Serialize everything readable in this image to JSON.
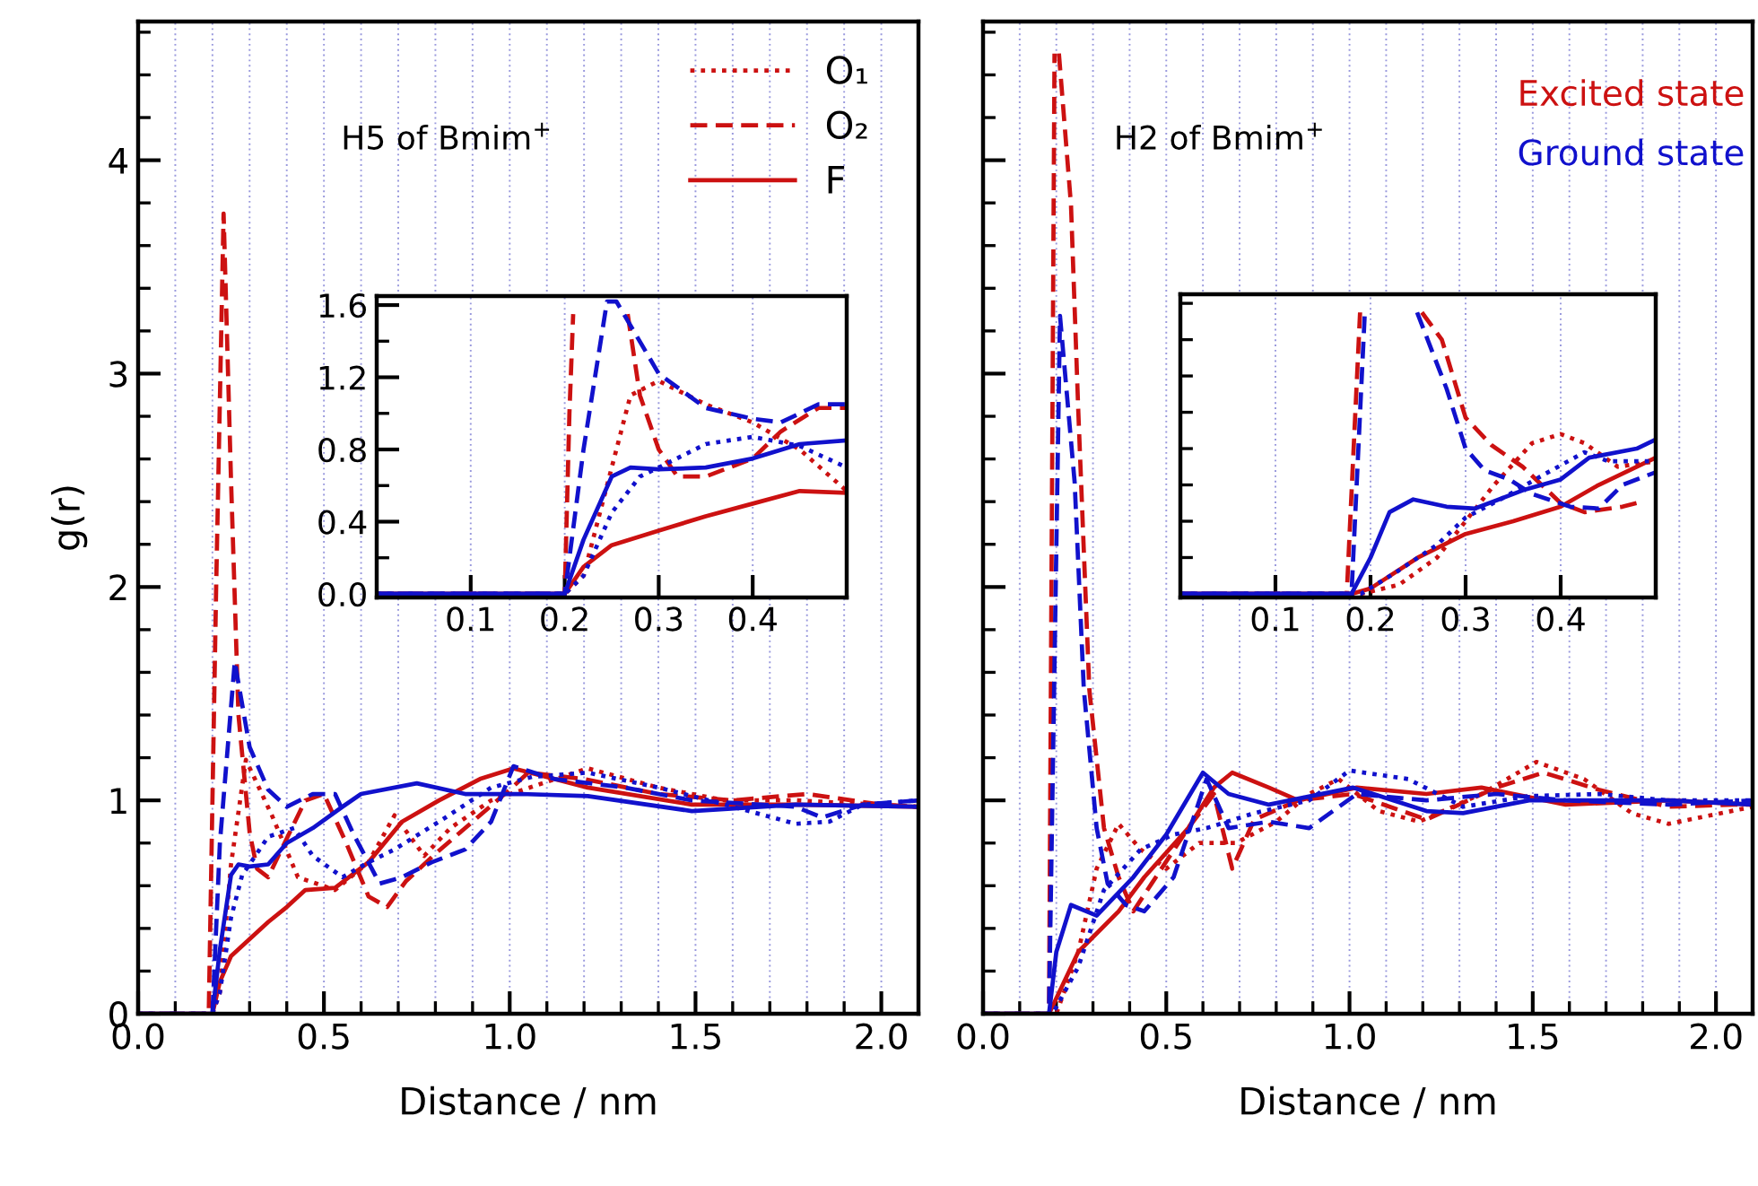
{
  "chart_data": [
    {
      "type": "line",
      "xlabel": "Distance / nm",
      "ylabel": "g(r)",
      "xlim": [
        0,
        2.1
      ],
      "ylim": [
        0,
        4.65
      ],
      "xticks": [
        {
          "value": 0,
          "label": "0.0"
        },
        {
          "value": 0.5,
          "label": "0.5"
        },
        {
          "value": 1.0,
          "label": "1.0"
        },
        {
          "value": 1.5,
          "label": "1.5"
        },
        {
          "value": 2.0,
          "label": "2.0"
        },
        {
          "value": 0.1,
          "label": null
        },
        {
          "value": 0.2,
          "label": null
        },
        {
          "value": 0.3,
          "label": null
        },
        {
          "value": 0.4,
          "label": null
        },
        {
          "value": 0.6,
          "label": null
        },
        {
          "value": 0.7,
          "label": null
        },
        {
          "value": 0.8,
          "label": null
        },
        {
          "value": 0.9,
          "label": null
        },
        {
          "value": 1.1,
          "label": null
        },
        {
          "value": 1.2,
          "label": null
        },
        {
          "value": 1.3,
          "label": null
        },
        {
          "value": 1.4,
          "label": null
        },
        {
          "value": 1.6,
          "label": null
        },
        {
          "value": 1.7,
          "label": null
        },
        {
          "value": 1.8,
          "label": null
        },
        {
          "value": 1.9,
          "label": null
        },
        {
          "value": 2.1,
          "label": null
        }
      ],
      "yticks": [
        0,
        1,
        2,
        3,
        4,
        {
          "value": 0.2,
          "label": null
        },
        {
          "value": 0.4,
          "label": null
        },
        {
          "value": 0.6,
          "label": null
        },
        {
          "value": 0.8,
          "label": null
        },
        {
          "value": 1.2,
          "label": null
        },
        {
          "value": 1.4,
          "label": null
        },
        {
          "value": 1.6,
          "label": null
        },
        {
          "value": 1.8,
          "label": null
        },
        {
          "value": 2.2,
          "label": null
        },
        {
          "value": 2.4,
          "label": null
        },
        {
          "value": 2.6,
          "label": null
        },
        {
          "value": 2.8,
          "label": null
        },
        {
          "value": 3.2,
          "label": null
        },
        {
          "value": 3.4,
          "label": null
        },
        {
          "value": 3.6,
          "label": null
        },
        {
          "value": 3.8,
          "label": null
        },
        {
          "value": 4.2,
          "label": null
        },
        {
          "value": 4.4,
          "label": null
        },
        {
          "value": 4.6,
          "label": null
        }
      ],
      "grid": "x",
      "legend": "top right",
      "annotations": [
        "H5 of Bmim$^{+}$"
      ],
      "series": [
        {
          "name": "O₁",
          "color": "#cc1111",
          "line_style": "dotted",
          "x": [
            0,
            0.2,
            0.22,
            0.25,
            0.29,
            0.36,
            0.43,
            0.53,
            0.62,
            0.69,
            0.77,
            0.84,
            0.95,
            1.21,
            1.4,
            1.58,
            1.77,
            2.1
          ],
          "values": [
            0,
            0,
            0.1,
            0.7,
            1.19,
            0.93,
            0.64,
            0.58,
            0.71,
            0.93,
            0.74,
            0.87,
            1.0,
            1.15,
            1.06,
            1.0,
            1.0,
            0.97
          ]
        },
        {
          "name": "O₂",
          "color": "#cc1111",
          "line_style": "dashed",
          "x": [
            0,
            0.19,
            0.21,
            0.23,
            0.25,
            0.27,
            0.3,
            0.32,
            0.35,
            0.38,
            0.45,
            0.5,
            0.56,
            0.62,
            0.67,
            0.72,
            0.8,
            0.9,
            1.0,
            1.05,
            1.2,
            1.4,
            1.6,
            1.8,
            2.0,
            2.1
          ],
          "values": [
            0,
            0,
            2.0,
            3.75,
            2.5,
            1.4,
            0.85,
            0.68,
            0.64,
            0.75,
            1.0,
            1.03,
            0.8,
            0.55,
            0.5,
            0.62,
            0.75,
            0.9,
            1.05,
            1.13,
            1.1,
            1.03,
            1.0,
            1.03,
            0.98,
            0.97
          ]
        },
        {
          "name": "F",
          "color": "#cc1111",
          "line_style": "solid",
          "x": [
            0,
            0.2,
            0.22,
            0.25,
            0.3,
            0.35,
            0.4,
            0.45,
            0.53,
            0.62,
            0.71,
            0.81,
            0.92,
            1.01,
            1.21,
            1.49,
            1.77,
            2.1
          ],
          "values": [
            0,
            0,
            0.15,
            0.27,
            0.35,
            0.43,
            0.5,
            0.58,
            0.59,
            0.71,
            0.9,
            1.0,
            1.1,
            1.15,
            1.06,
            0.98,
            0.98,
            0.97
          ]
        },
        {
          "color": "#1111cc",
          "line_style": "dotted",
          "x": [
            0,
            0.2,
            0.22,
            0.25,
            0.28,
            0.3,
            0.35,
            0.42,
            0.47,
            0.55,
            0.62,
            0.69,
            0.81,
            0.95,
            1.06,
            1.21,
            1.4,
            1.58,
            1.77,
            1.86,
            1.95,
            2.1
          ],
          "values": [
            0,
            0,
            0.1,
            0.45,
            0.65,
            0.7,
            0.83,
            0.87,
            0.74,
            0.64,
            0.71,
            0.77,
            0.9,
            1.06,
            1.11,
            1.13,
            1.06,
            0.98,
            0.89,
            0.9,
            0.98,
            1.0
          ]
        },
        {
          "color": "#1111cc",
          "line_style": "dashed",
          "x": [
            0,
            0.2,
            0.22,
            0.26,
            0.3,
            0.35,
            0.4,
            0.47,
            0.53,
            0.58,
            0.65,
            0.71,
            0.79,
            0.88,
            0.95,
            1.01,
            1.12,
            1.31,
            1.49,
            1.77,
            1.84,
            1.95,
            2.1
          ],
          "values": [
            0,
            0,
            0.8,
            1.65,
            1.25,
            1.05,
            0.97,
            1.03,
            1.03,
            0.84,
            0.61,
            0.64,
            0.71,
            0.77,
            0.9,
            1.16,
            1.1,
            1.06,
            1.0,
            0.97,
            0.92,
            0.98,
            1.0
          ]
        },
        {
          "color": "#1111cc",
          "line_style": "solid",
          "x": [
            0,
            0.2,
            0.22,
            0.25,
            0.27,
            0.3,
            0.35,
            0.4,
            0.47,
            0.55,
            0.6,
            0.75,
            0.88,
            1.03,
            1.21,
            1.49,
            1.77,
            2.1
          ],
          "values": [
            0,
            0,
            0.3,
            0.65,
            0.7,
            0.69,
            0.7,
            0.8,
            0.87,
            0.97,
            1.03,
            1.08,
            1.03,
            1.03,
            1.02,
            0.95,
            0.98,
            0.97
          ]
        }
      ]
    },
    {
      "type": "line",
      "xlim": [
        0,
        0.5
      ],
      "ylim": [
        -0.02,
        1.65
      ],
      "xticks": [
        0.1,
        0.2,
        0.3,
        0.4
      ],
      "yticks": [
        {
          "value": 0,
          "label": "0.0"
        },
        {
          "value": 0.4,
          "label": "0.4"
        },
        {
          "value": 0.8,
          "label": "0.8"
        },
        {
          "value": 1.2,
          "label": "1.2"
        },
        {
          "value": 1.6,
          "label": "1.6"
        },
        {
          "value": 0.2,
          "label": null
        },
        {
          "value": 0.6,
          "label": null
        },
        {
          "value": 1.0,
          "label": null
        },
        {
          "value": 1.4,
          "label": null
        }
      ],
      "grid": "x",
      "series": [
        {
          "color": "#cc1111",
          "line_style": "dotted",
          "x": [
            0,
            0.2,
            0.22,
            0.25,
            0.27,
            0.3,
            0.35,
            0.4,
            0.45,
            0.5
          ],
          "values": [
            0,
            0,
            0.1,
            0.7,
            1.1,
            1.18,
            1.05,
            0.95,
            0.8,
            0.57
          ]
        },
        {
          "color": "#cc1111",
          "line_style": "dashed",
          "x": [
            0,
            0.2,
            0.205,
            0.209,
            0.24,
            0.267,
            0.28,
            0.3,
            0.32,
            0.35,
            0.4,
            0.43,
            0.47,
            0.5
          ],
          "values": [
            0,
            0,
            1.0,
            1.55,
            null,
            1.55,
            1.1,
            0.8,
            0.65,
            0.65,
            0.75,
            0.9,
            1.03,
            1.03
          ]
        },
        {
          "color": "#cc1111",
          "line_style": "solid",
          "x": [
            0,
            0.2,
            0.22,
            0.25,
            0.3,
            0.35,
            0.4,
            0.45,
            0.5
          ],
          "values": [
            0,
            0,
            0.15,
            0.27,
            0.35,
            0.43,
            0.5,
            0.57,
            0.56
          ]
        },
        {
          "color": "#1111cc",
          "line_style": "dotted",
          "x": [
            0,
            0.2,
            0.22,
            0.25,
            0.28,
            0.3,
            0.35,
            0.4,
            0.45,
            0.5
          ],
          "values": [
            0,
            0,
            0.1,
            0.45,
            0.65,
            0.7,
            0.83,
            0.87,
            0.82,
            0.7
          ]
        },
        {
          "color": "#1111cc",
          "line_style": "dashed",
          "x": [
            0,
            0.2,
            0.22,
            0.245,
            0.255,
            0.3,
            0.35,
            0.4,
            0.43,
            0.47,
            0.5
          ],
          "values": [
            0,
            0,
            0.8,
            1.62,
            1.62,
            1.22,
            1.03,
            0.97,
            0.95,
            1.05,
            1.05
          ]
        },
        {
          "color": "#1111cc",
          "line_style": "solid",
          "x": [
            0,
            0.2,
            0.22,
            0.25,
            0.27,
            0.3,
            0.35,
            0.4,
            0.45,
            0.5
          ],
          "values": [
            0,
            0,
            0.3,
            0.65,
            0.7,
            0.69,
            0.7,
            0.75,
            0.83,
            0.85
          ]
        }
      ]
    },
    {
      "type": "line",
      "xlabel": "Distance / nm",
      "tick_labels": "x",
      "xlim": [
        0,
        2.1
      ],
      "ylim": [
        0,
        4.65
      ],
      "xticks": [
        {
          "value": 0,
          "label": "0.0"
        },
        {
          "value": 0.5,
          "label": "0.5"
        },
        {
          "value": 1.0,
          "label": "1.0"
        },
        {
          "value": 1.5,
          "label": "1.5"
        },
        {
          "value": 2.0,
          "label": "2.0"
        },
        {
          "value": 0.1,
          "label": null
        },
        {
          "value": 0.2,
          "label": null
        },
        {
          "value": 0.3,
          "label": null
        },
        {
          "value": 0.4,
          "label": null
        },
        {
          "value": 0.6,
          "label": null
        },
        {
          "value": 0.7,
          "label": null
        },
        {
          "value": 0.8,
          "label": null
        },
        {
          "value": 0.9,
          "label": null
        },
        {
          "value": 1.1,
          "label": null
        },
        {
          "value": 1.2,
          "label": null
        },
        {
          "value": 1.3,
          "label": null
        },
        {
          "value": 1.4,
          "label": null
        },
        {
          "value": 1.6,
          "label": null
        },
        {
          "value": 1.7,
          "label": null
        },
        {
          "value": 1.8,
          "label": null
        },
        {
          "value": 1.9,
          "label": null
        },
        {
          "value": 2.1,
          "label": null
        }
      ],
      "yticks": [
        0,
        1,
        2,
        3,
        4,
        {
          "value": 0.2,
          "label": null
        },
        {
          "value": 0.4,
          "label": null
        },
        {
          "value": 0.6,
          "label": null
        },
        {
          "value": 0.8,
          "label": null
        },
        {
          "value": 1.2,
          "label": null
        },
        {
          "value": 1.4,
          "label": null
        },
        {
          "value": 1.6,
          "label": null
        },
        {
          "value": 1.8,
          "label": null
        },
        {
          "value": 2.2,
          "label": null
        },
        {
          "value": 2.4,
          "label": null
        },
        {
          "value": 2.6,
          "label": null
        },
        {
          "value": 2.8,
          "label": null
        },
        {
          "value": 3.2,
          "label": null
        },
        {
          "value": 3.4,
          "label": null
        },
        {
          "value": 3.6,
          "label": null
        },
        {
          "value": 3.8,
          "label": null
        },
        {
          "value": 4.2,
          "label": null
        },
        {
          "value": 4.4,
          "label": null
        },
        {
          "value": 4.6,
          "label": null
        }
      ],
      "grid": "x",
      "annotations": [
        "H2 of Bmim$^{+}$",
        "Excited state",
        "Ground state"
      ],
      "series": [
        {
          "color": "#cc1111",
          "line_style": "dotted",
          "x": [
            0,
            0.2,
            0.26,
            0.31,
            0.37,
            0.43,
            0.5,
            0.59,
            0.69,
            0.8,
            0.89,
            0.97,
            1.08,
            1.19,
            1.36,
            1.51,
            1.64,
            1.77,
            1.87,
            2.1
          ],
          "values": [
            0,
            0,
            0.29,
            0.68,
            0.89,
            0.77,
            0.68,
            0.8,
            0.8,
            0.9,
            1.03,
            1.1,
            0.95,
            0.9,
            1.03,
            1.18,
            1.1,
            0.94,
            0.89,
            0.97
          ]
        },
        {
          "color": "#cc1111",
          "line_style": "dashed",
          "x": [
            0,
            0.18,
            0.195,
            0.2,
            0.207,
            0.24,
            0.26,
            0.29,
            0.33,
            0.37,
            0.41,
            0.46,
            0.56,
            0.63,
            0.68,
            0.74,
            0.86,
            1.01,
            1.21,
            1.4,
            1.53,
            1.68,
            1.87,
            2.05,
            2.1
          ],
          "values": [
            0,
            0,
            4.5,
            null,
            4.5,
            3.79,
            2.82,
            1.52,
            0.87,
            0.64,
            0.48,
            0.61,
            0.87,
            1.03,
            0.68,
            0.91,
            1.0,
            1.03,
            0.91,
            1.06,
            1.13,
            1.05,
            0.97,
            0.98,
            0.98
          ]
        },
        {
          "color": "#cc1111",
          "line_style": "solid",
          "x": [
            0,
            0.18,
            0.26,
            0.37,
            0.44,
            0.56,
            0.63,
            0.68,
            0.78,
            0.86,
            1.02,
            1.21,
            1.36,
            1.59,
            1.87,
            2.1
          ],
          "values": [
            0,
            0,
            0.29,
            0.48,
            0.64,
            0.87,
            1.06,
            1.13,
            1.06,
            1.0,
            1.06,
            1.03,
            1.06,
            0.98,
            1.0,
            0.98
          ]
        },
        {
          "color": "#1111cc",
          "line_style": "dotted",
          "x": [
            0,
            0.19,
            0.26,
            0.33,
            0.43,
            0.52,
            0.61,
            0.74,
            0.89,
            1.0,
            1.16,
            1.31,
            1.49,
            1.68,
            1.87,
            2.1
          ],
          "values": [
            0,
            0,
            0.22,
            0.58,
            0.77,
            0.84,
            0.87,
            0.94,
            1.0,
            1.14,
            1.1,
            0.97,
            1.02,
            1.03,
            1.0,
            1.0
          ]
        },
        {
          "color": "#1111cc",
          "line_style": "dashed",
          "x": [
            0,
            0.18,
            0.21,
            0.25,
            0.275,
            0.31,
            0.34,
            0.39,
            0.44,
            0.52,
            0.61,
            0.67,
            0.78,
            0.89,
            1.02,
            1.21,
            1.4,
            1.59,
            1.87,
            2.1
          ],
          "values": [
            0,
            0,
            3.27,
            2.49,
            1.52,
            0.87,
            0.61,
            0.51,
            0.48,
            0.64,
            1.1,
            0.87,
            0.9,
            0.87,
            1.03,
            1.0,
            1.03,
            1.0,
            0.98,
            1.0
          ]
        },
        {
          "color": "#1111cc",
          "line_style": "solid",
          "x": [
            0,
            0.18,
            0.2,
            0.24,
            0.31,
            0.41,
            0.5,
            0.6,
            0.67,
            0.78,
            1.01,
            1.21,
            1.31,
            1.49,
            1.87,
            2.1
          ],
          "values": [
            0,
            0,
            0.29,
            0.51,
            0.46,
            0.64,
            0.84,
            1.13,
            1.03,
            0.98,
            1.06,
            0.95,
            0.94,
            1.0,
            1.0,
            0.98
          ]
        }
      ]
    },
    {
      "type": "line",
      "tick_labels": "x",
      "xlim": [
        0,
        0.5
      ],
      "ylim": [
        -0.02,
        1.65
      ],
      "xticks": [
        0.1,
        0.2,
        0.3,
        0.4
      ],
      "yticks": [
        {
          "value": 0,
          "label": null
        },
        {
          "value": 0.4,
          "label": null
        },
        {
          "value": 0.8,
          "label": null
        },
        {
          "value": 1.2,
          "label": null
        },
        {
          "value": 1.6,
          "label": null
        },
        {
          "value": 0.2,
          "label": null
        },
        {
          "value": 0.6,
          "label": null
        },
        {
          "value": 1.0,
          "label": null
        },
        {
          "value": 1.4,
          "label": null
        }
      ],
      "grid": "x",
      "series": [
        {
          "color": "#cc1111",
          "line_style": "dotted",
          "x": [
            0,
            0.19,
            0.23,
            0.27,
            0.3,
            0.33,
            0.37,
            0.4,
            0.425,
            0.46,
            0.5
          ],
          "values": [
            0,
            0,
            0.05,
            0.2,
            0.4,
            0.6,
            0.83,
            0.88,
            0.83,
            0.7,
            0.73
          ]
        },
        {
          "color": "#cc1111",
          "line_style": "dashed",
          "x": [
            0,
            0.175,
            0.189,
            0.22,
            0.254,
            0.275,
            0.3,
            0.327,
            0.36,
            0.4,
            0.425,
            0.465,
            0.48
          ],
          "values": [
            0,
            0,
            1.55,
            null,
            1.55,
            1.4,
            0.97,
            0.82,
            0.7,
            0.5,
            0.45,
            0.48,
            0.5
          ]
        },
        {
          "color": "#cc1111",
          "line_style": "solid",
          "x": [
            0,
            0.18,
            0.2,
            0.25,
            0.3,
            0.35,
            0.4,
            0.44,
            0.5
          ],
          "values": [
            0,
            0,
            0.03,
            0.2,
            0.33,
            0.4,
            0.48,
            0.6,
            0.75
          ]
        },
        {
          "color": "#1111cc",
          "line_style": "dotted",
          "x": [
            0,
            0.19,
            0.23,
            0.27,
            0.3,
            0.34,
            0.38,
            0.425,
            0.45,
            0.5
          ],
          "values": [
            0,
            0,
            0.13,
            0.27,
            0.42,
            0.53,
            0.65,
            0.78,
            0.73,
            0.73
          ]
        },
        {
          "color": "#1111cc",
          "line_style": "dashed",
          "x": [
            0,
            0.18,
            0.194,
            0.22,
            0.249,
            0.28,
            0.3,
            0.32,
            0.346,
            0.37,
            0.41,
            0.44,
            0.465,
            0.5
          ],
          "values": [
            0,
            0,
            1.55,
            null,
            1.55,
            1.13,
            0.8,
            0.68,
            0.63,
            0.55,
            0.48,
            0.47,
            0.6,
            0.67
          ]
        },
        {
          "color": "#1111cc",
          "line_style": "solid",
          "x": [
            0,
            0.18,
            0.2,
            0.22,
            0.245,
            0.28,
            0.31,
            0.36,
            0.4,
            0.43,
            0.48,
            0.5
          ],
          "values": [
            0,
            0,
            0.2,
            0.45,
            0.52,
            0.48,
            0.47,
            0.57,
            0.63,
            0.75,
            0.8,
            0.85
          ]
        }
      ]
    }
  ]
}
